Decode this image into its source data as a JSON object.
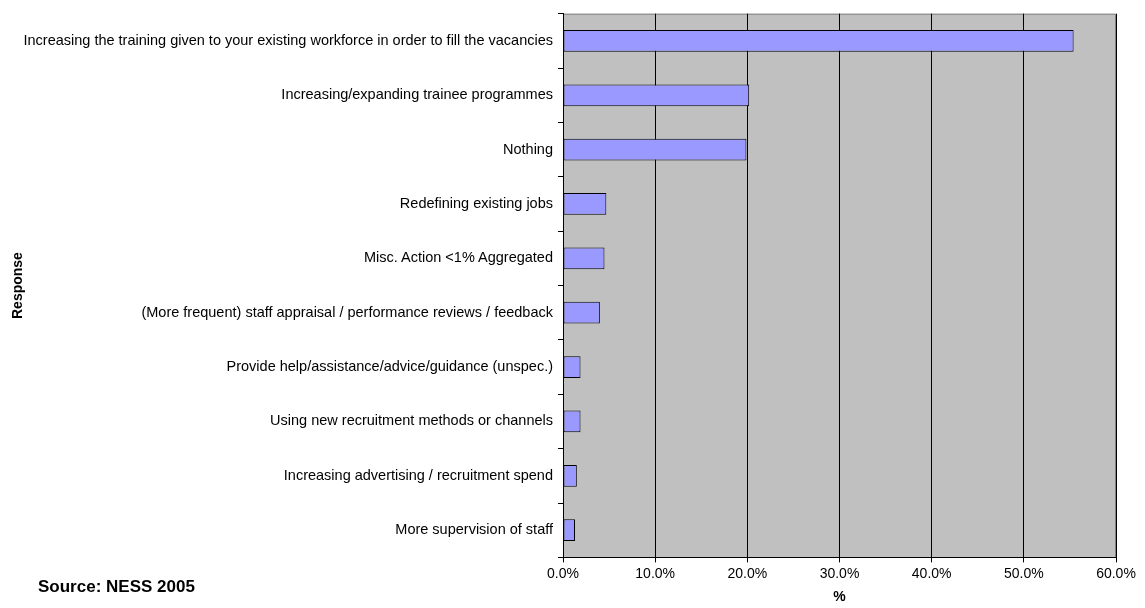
{
  "chart_data": {
    "type": "bar",
    "orientation": "horizontal",
    "categories": [
      "Increasing the training given to your existing workforce in order to fill the vacancies",
      "Increasing/expanding trainee programmes",
      "Nothing",
      "Redefining existing jobs",
      "Misc. Action <1% Aggregated",
      "(More frequent) staff appraisal / performance reviews / feedback",
      "Provide help/assistance/advice/guidance (unspec.)",
      "Using new recruitment methods or channels",
      "Increasing advertising / recruitment spend",
      "More supervision of staff"
    ],
    "values": [
      55.4,
      20.2,
      19.9,
      4.7,
      4.5,
      4.0,
      1.9,
      1.9,
      1.5,
      1.3
    ],
    "color": "#9999ff",
    "xlabel": "%",
    "ylabel": "Response",
    "xlim": [
      0,
      60
    ],
    "xticks": [
      {
        "value": 0,
        "label": "0.0%"
      },
      {
        "value": 10,
        "label": "10.0%"
      },
      {
        "value": 20,
        "label": "20.0%"
      },
      {
        "value": 30,
        "label": "30.0%"
      },
      {
        "value": 40,
        "label": "40.0%"
      },
      {
        "value": 50,
        "label": "50.0%"
      },
      {
        "value": 60,
        "label": "60.0%"
      }
    ],
    "grid": "x",
    "legend": false,
    "annotations": [
      "Source: NESS 2005"
    ]
  }
}
